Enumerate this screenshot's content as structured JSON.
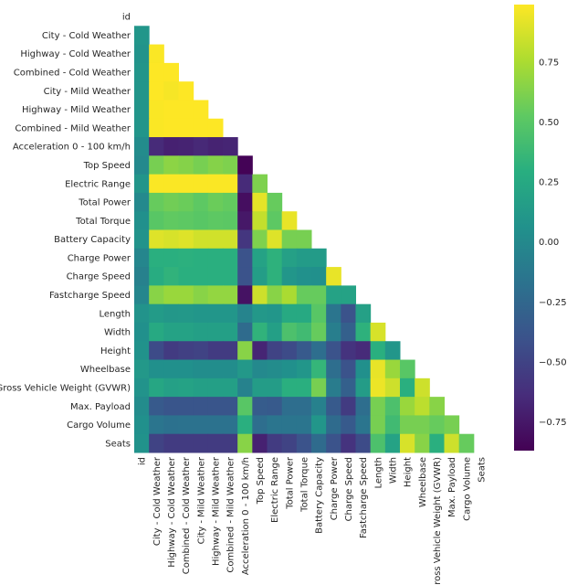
{
  "chart_data": {
    "type": "heatmap",
    "title": "",
    "mask": "upper triangle including diagonal",
    "colormap": "viridis",
    "vmin": -0.87,
    "vmax": 0.99,
    "colorbar_ticks": [
      0.75,
      0.5,
      0.25,
      0.0,
      -0.25,
      -0.5,
      -0.75
    ],
    "colorbar_tick_labels": [
      "0.75",
      "0.50",
      "0.25",
      "0.00",
      "−0.25",
      "−0.50",
      "−0.75"
    ],
    "labels": [
      "id",
      "City - Cold Weather",
      "Highway - Cold Weather",
      "Combined - Cold Weather",
      "City - Mild Weather",
      "Highway - Mild Weather",
      "Combined - Mild Weather",
      "Acceleration 0 - 100 km/h",
      "Top Speed",
      "Electric Range",
      "Total Power",
      "Total Torque",
      "Battery Capacity",
      "Charge Power",
      "Charge Speed",
      "Fastcharge Speed",
      "Length",
      "Width",
      "Height",
      "Wheelbase",
      "Gross Vehicle Weight (GVWR)",
      "Max. Payload",
      "Cargo Volume",
      "Seats"
    ],
    "values": [
      [],
      [
        0.1
      ],
      [
        0.08,
        0.98
      ],
      [
        0.09,
        0.99,
        0.99
      ],
      [
        0.09,
        0.99,
        0.97,
        0.99
      ],
      [
        0.09,
        0.98,
        0.99,
        0.99,
        0.99
      ],
      [
        0.09,
        0.98,
        0.99,
        0.99,
        0.99,
        0.99
      ],
      [
        0.02,
        -0.65,
        -0.7,
        -0.69,
        -0.66,
        -0.69,
        -0.68
      ],
      [
        0.0,
        0.6,
        0.66,
        0.64,
        0.6,
        0.64,
        0.62,
        -0.86
      ],
      [
        0.09,
        0.98,
        0.98,
        0.98,
        0.98,
        0.98,
        0.98,
        -0.65,
        0.62
      ],
      [
        0.0,
        0.55,
        0.58,
        0.56,
        0.52,
        0.56,
        0.54,
        -0.8,
        0.92,
        0.55
      ],
      [
        0.05,
        0.5,
        0.53,
        0.52,
        0.5,
        0.52,
        0.51,
        -0.75,
        0.82,
        0.52,
        0.93
      ],
      [
        0.08,
        0.9,
        0.88,
        0.9,
        0.86,
        0.86,
        0.86,
        -0.58,
        0.62,
        0.9,
        0.6,
        0.6
      ],
      [
        -0.02,
        0.3,
        0.3,
        0.31,
        0.3,
        0.3,
        0.3,
        -0.4,
        0.2,
        0.32,
        0.18,
        0.14,
        0.14
      ],
      [
        -0.06,
        0.28,
        0.33,
        0.3,
        0.3,
        0.3,
        0.3,
        -0.4,
        0.16,
        0.32,
        0.1,
        0.06,
        0.05,
        0.93
      ],
      [
        -0.02,
        0.65,
        0.7,
        0.7,
        0.65,
        0.68,
        0.68,
        -0.78,
        0.85,
        0.65,
        0.75,
        0.55,
        0.55,
        0.2,
        0.2
      ],
      [
        0.08,
        0.14,
        0.11,
        0.12,
        0.1,
        0.1,
        0.1,
        -0.04,
        0.12,
        0.1,
        0.25,
        0.25,
        0.5,
        -0.15,
        -0.4,
        0.18
      ],
      [
        0.05,
        0.25,
        0.2,
        0.2,
        0.17,
        0.17,
        0.17,
        -0.22,
        0.33,
        0.17,
        0.45,
        0.4,
        0.55,
        -0.08,
        -0.3,
        0.32,
        0.88
      ],
      [
        0.07,
        -0.45,
        -0.55,
        -0.52,
        -0.5,
        -0.55,
        -0.55,
        0.65,
        -0.68,
        -0.5,
        -0.45,
        -0.35,
        -0.2,
        -0.4,
        -0.6,
        -0.65,
        0.3,
        0.1
      ],
      [
        0.12,
        0.05,
        0.05,
        0.05,
        0.03,
        0.03,
        0.03,
        0.12,
        0.0,
        0.02,
        0.05,
        0.1,
        0.35,
        -0.2,
        -0.4,
        0.05,
        0.93,
        0.7,
        0.5
      ],
      [
        0.08,
        0.23,
        0.18,
        0.2,
        0.17,
        0.17,
        0.17,
        -0.05,
        0.15,
        0.15,
        0.3,
        0.3,
        0.6,
        -0.1,
        -0.3,
        0.15,
        0.94,
        0.85,
        0.3,
        0.85
      ],
      [
        0.02,
        -0.35,
        -0.38,
        -0.38,
        -0.38,
        -0.38,
        -0.38,
        0.5,
        -0.33,
        -0.35,
        -0.2,
        -0.2,
        -0.06,
        -0.35,
        -0.55,
        -0.2,
        0.6,
        0.45,
        0.7,
        0.8,
        0.65
      ],
      [
        0.05,
        -0.15,
        -0.18,
        -0.17,
        -0.17,
        -0.17,
        -0.17,
        0.3,
        -0.2,
        -0.15,
        -0.15,
        -0.15,
        0.1,
        -0.22,
        -0.35,
        -0.15,
        0.6,
        0.4,
        0.6,
        0.6,
        0.55,
        0.6
      ],
      [
        0.07,
        -0.5,
        -0.55,
        -0.55,
        -0.55,
        -0.55,
        -0.55,
        0.65,
        -0.7,
        -0.55,
        -0.5,
        -0.4,
        -0.22,
        -0.4,
        -0.6,
        -0.45,
        0.45,
        0.2,
        0.88,
        0.65,
        0.3,
        0.85,
        0.55
      ]
    ]
  }
}
